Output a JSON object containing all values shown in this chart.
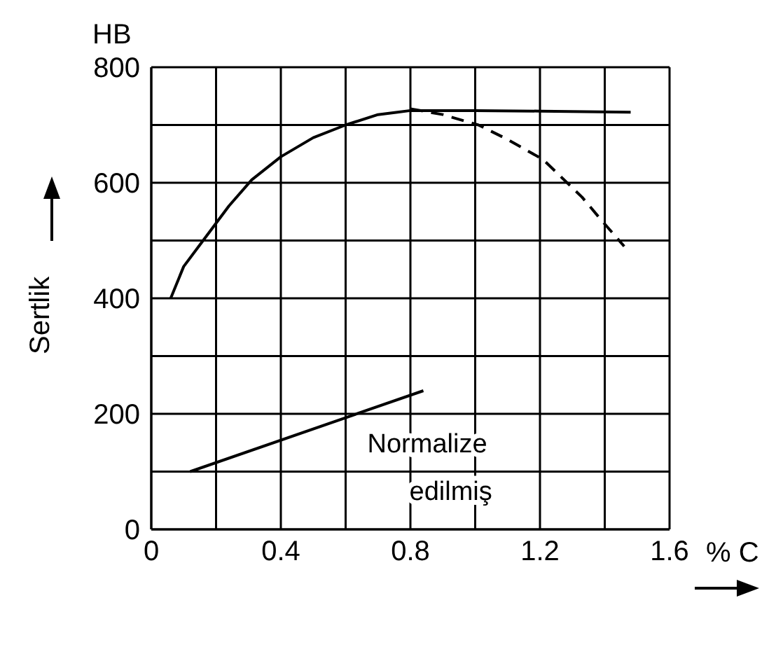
{
  "chart_data": {
    "type": "line",
    "ylabel": "Sertlik",
    "xlabel": "% C",
    "annotations": [
      "HB"
    ],
    "xlim": [
      0,
      1.6
    ],
    "ylim": [
      0,
      800
    ],
    "xticks": [
      0,
      {
        "value": 0.2,
        "label": null
      },
      0.4,
      {
        "value": 0.6,
        "label": null
      },
      0.8,
      {
        "value": 1.0,
        "label": null
      },
      1.2,
      {
        "value": 1.4,
        "label": null
      },
      1.6
    ],
    "yticks": [
      0,
      {
        "value": 100,
        "label": null
      },
      200,
      {
        "value": 300,
        "label": null
      },
      400,
      {
        "value": 500,
        "label": null
      },
      600,
      {
        "value": 700,
        "label": null
      },
      800
    ],
    "grid": true,
    "marker": "none",
    "series": [
      {
        "color": "#000000",
        "line_style": "solid",
        "x": [
          0.06,
          0.1,
          0.16,
          0.24,
          0.31,
          0.4,
          0.5,
          0.6,
          0.7,
          0.76,
          0.8,
          1.0,
          1.2,
          1.48
        ],
        "values": [
          400,
          455,
          500,
          560,
          605,
          645,
          678,
          700,
          718,
          722,
          725,
          725,
          724,
          722
        ]
      },
      {
        "color": "#000000",
        "line_style": "dashed",
        "x": [
          0.8,
          0.9,
          1.01,
          1.1,
          1.21,
          1.33,
          1.39,
          1.46
        ],
        "values": [
          728,
          718,
          700,
          675,
          640,
          575,
          535,
          490
        ]
      },
      {
        "name": "Normalize edilmiş",
        "color": "#000000",
        "line_style": "solid",
        "x": [
          0.12,
          0.84
        ],
        "values": [
          100,
          240
        ]
      }
    ]
  }
}
